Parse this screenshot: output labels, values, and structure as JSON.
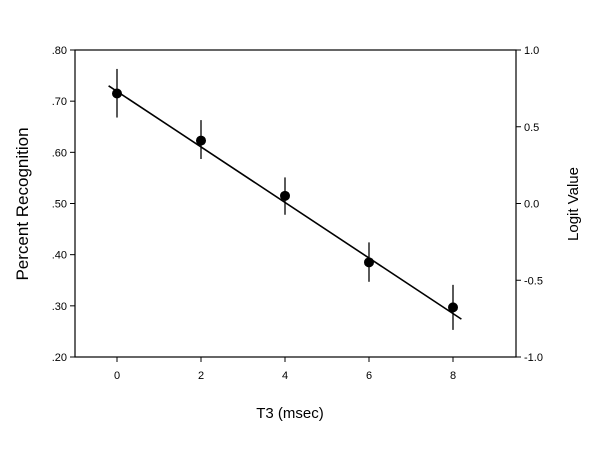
{
  "chart_data": {
    "type": "scatter",
    "xlabel": "T3 (msec)",
    "ylabel": "Percent Recognition",
    "y2label": "Logit Value",
    "xlim": [
      -1,
      9.5
    ],
    "ylim": [
      0.2,
      0.8
    ],
    "y2lim": [
      -1.0,
      1.0
    ],
    "x_ticks": [
      0,
      2,
      4,
      6,
      8
    ],
    "x_tick_labels": [
      "0",
      "2",
      "4",
      "6",
      "8"
    ],
    "y_ticks": [
      0.2,
      0.3,
      0.4,
      0.5,
      0.6,
      0.7,
      0.8
    ],
    "y_tick_labels": [
      ".20",
      ".30",
      ".40",
      ".50",
      ".60",
      ".70",
      ".80"
    ],
    "y2_ticks": [
      -1.0,
      -0.5,
      0.0,
      0.5,
      1.0
    ],
    "y2_tick_labels": [
      "-1.0",
      "-0.5",
      "0.0",
      "0.5",
      "1.0"
    ],
    "grid": false,
    "legend": "none",
    "points": [
      {
        "x": 0,
        "y": 0.715,
        "err_low": 0.668,
        "err_high": 0.763
      },
      {
        "x": 2,
        "y": 0.623,
        "err_low": 0.587,
        "err_high": 0.663
      },
      {
        "x": 4,
        "y": 0.515,
        "err_low": 0.478,
        "err_high": 0.551
      },
      {
        "x": 6,
        "y": 0.385,
        "err_low": 0.347,
        "err_high": 0.424
      },
      {
        "x": 8,
        "y": 0.297,
        "err_low": 0.253,
        "err_high": 0.341
      }
    ],
    "fit_line": {
      "x": [
        -0.2,
        8.2
      ],
      "y": [
        0.73,
        0.274
      ]
    }
  }
}
